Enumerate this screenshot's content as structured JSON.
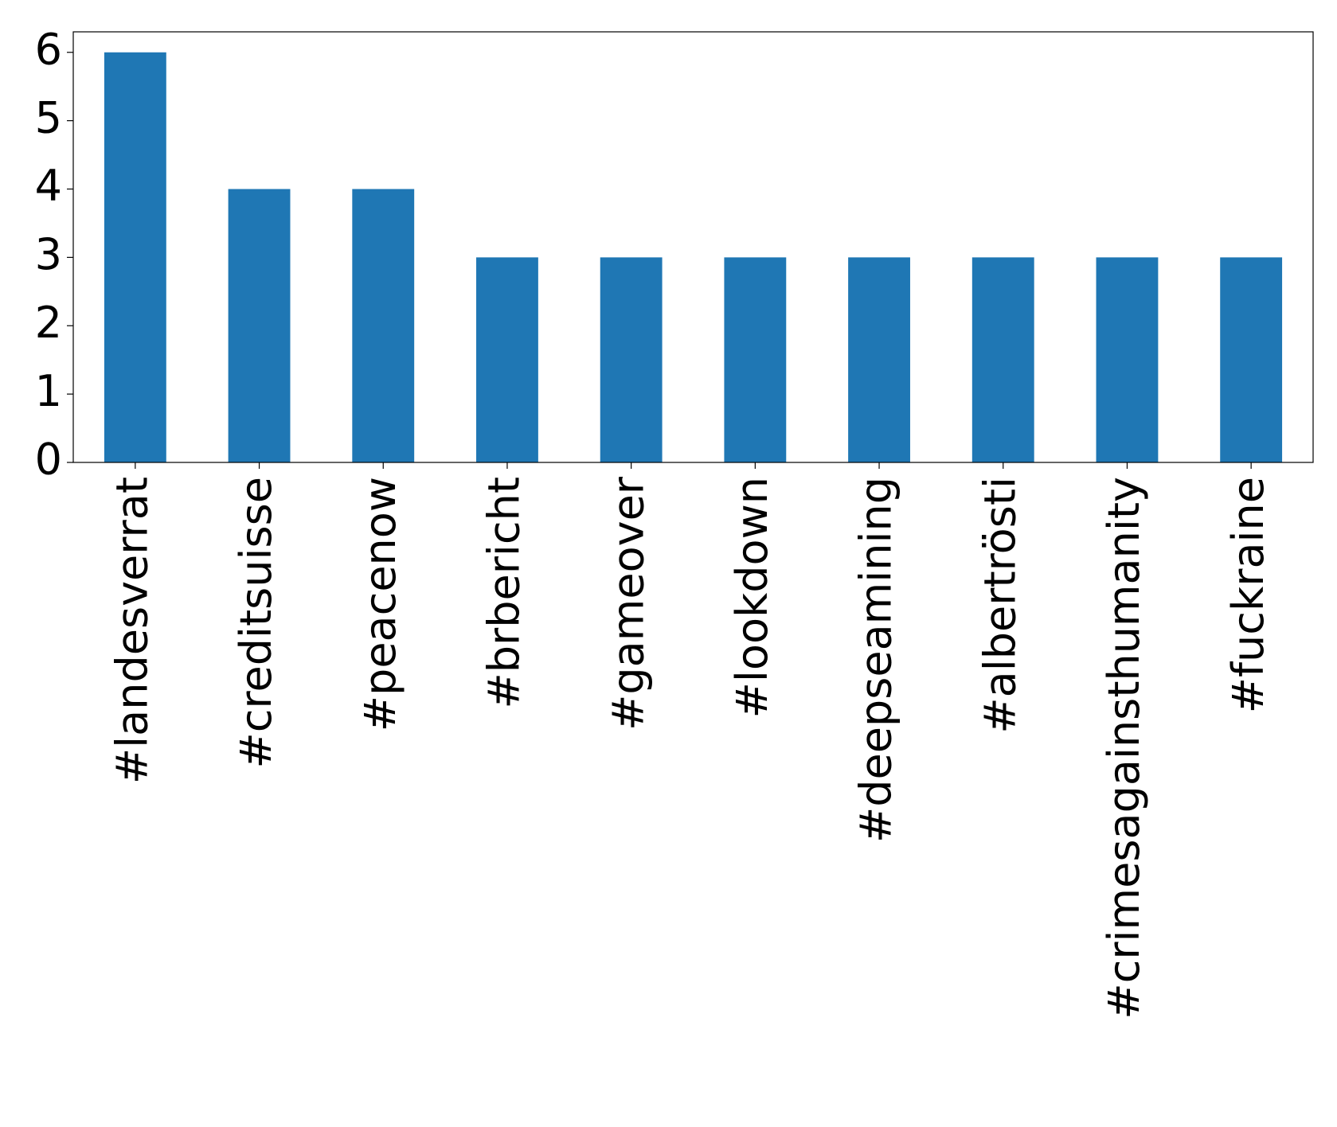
{
  "chart_data": {
    "type": "bar",
    "categories": [
      "#landesverrat",
      "#creditsuisse",
      "#peacenow",
      "#brbericht",
      "#gameover",
      "#lookdown",
      "#deepseamining",
      "#albertrösti",
      "#crimesagainsthumanity",
      "#fuckraine"
    ],
    "values": [
      6,
      4,
      4,
      3,
      3,
      3,
      3,
      3,
      3,
      3
    ],
    "color": "#1f77b4",
    "ylim": [
      0,
      6.3
    ],
    "yticks": [
      0,
      1,
      2,
      3,
      4,
      5,
      6
    ],
    "grid": false
  }
}
